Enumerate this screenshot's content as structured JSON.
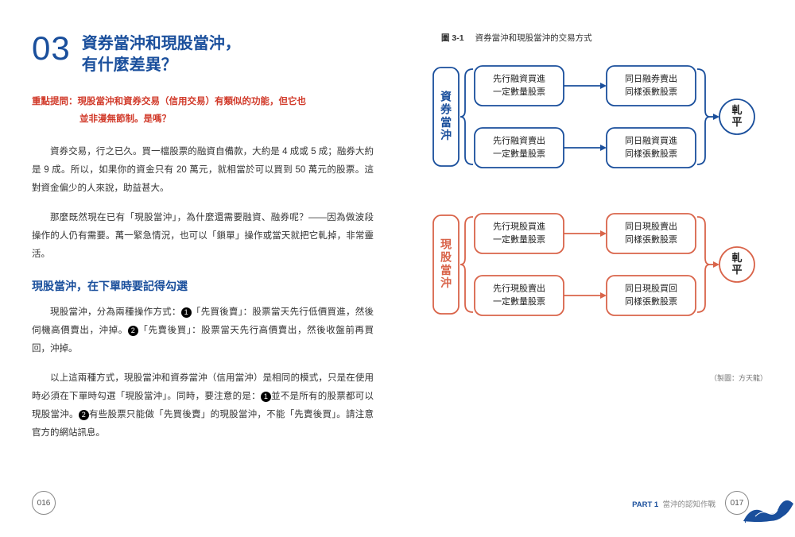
{
  "colors": {
    "blue": "#1a4f9c",
    "orange": "#d9644a",
    "red": "#d13a2a",
    "text": "#333333",
    "box_border_w": 1.8,
    "box_radius": 10
  },
  "left": {
    "chapter_num": "03",
    "title_l1": "資券當沖和現股當沖，",
    "title_l2": "有什麼差異？",
    "lead_l1": "重點提問：現股當沖和資券交易（信用交易）有類似的功能，但它也",
    "lead_l2": "並非漫無節制。是嗎？",
    "p1": "資券交易，行之已久。買一檔股票的融資自備款，大約是 4 成或 5 成；融券大約是 9 成。所以，如果你的資金只有 20 萬元，就相當於可以買到 50 萬元的股票。這對資金偏少的人來說，助益甚大。",
    "p2": "那麼既然現在已有「現股當沖」，為什麼還需要融資、融券呢？——因為做波段操作的人仍有需要。萬一緊急情況，也可以「鎖單」操作或當天就把它軋掉，非常靈活。",
    "subhead": "現股當沖，在下單時要記得勾選",
    "p3a": "現股當沖，分為兩種操作方式：",
    "p3b": "「先買後賣」：股票當天先行低價買進，然後伺機高價賣出，沖掉。",
    "p3c": "「先賣後買」：股票當天先行高價賣出，然後收盤前再買回，沖掉。",
    "p4a": "以上這兩種方式，現股當沖和資券當沖（信用當沖）是相同的模式，只是在使用時必須在下單時勾選「現股當沖」。同時，要注意的是：",
    "p4b": "並不是所有的股票都可以現股當沖。",
    "p4c": "有些股票只能做「先買後賣」的現股當沖，不能「先賣後買」。請注意官方的網站訊息。",
    "page_num": "016"
  },
  "right": {
    "fig_no": "圖 3-1",
    "fig_title": "資券當沖和現股當沖的交易方式",
    "credit": "（製圖：方天龍）",
    "part_label_1": "PART 1",
    "part_label_2": "當沖的認知作戰",
    "page_num": "017",
    "diagram": {
      "groups": [
        {
          "color": "#1a4f9c",
          "side_label": "資券當沖",
          "end_label": "軋平",
          "rows": [
            {
              "box1_l1": "先行融資買進",
              "box1_l2": "一定數量股票",
              "box2_l1": "同日融券賣出",
              "box2_l2": "同樣張數股票"
            },
            {
              "box1_l1": "先行融資賣出",
              "box1_l2": "一定數量股票",
              "box2_l1": "同日融資買進",
              "box2_l2": "同樣張數股票"
            }
          ]
        },
        {
          "color": "#d9644a",
          "side_label": "現股當沖",
          "end_label": "軋平",
          "rows": [
            {
              "box1_l1": "先行現股買進",
              "box1_l2": "一定數量股票",
              "box2_l1": "同日現股賣出",
              "box2_l2": "同樣張數股票"
            },
            {
              "box1_l1": "先行現股賣出",
              "box1_l2": "一定數量股票",
              "box2_l1": "同日現股買回",
              "box2_l2": "同樣張數股票"
            }
          ]
        }
      ]
    }
  }
}
